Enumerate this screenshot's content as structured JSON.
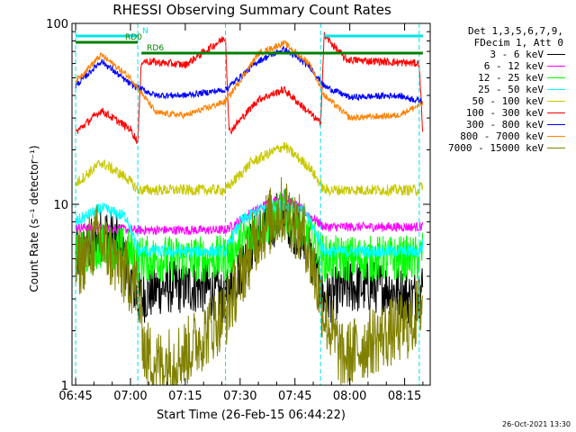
{
  "header": {
    "title": "RHESSI Observing Summary Count Rates",
    "xlabel": "Start Time (26-Feb-15 06:44:22)",
    "ylabel": "Count Rate (s⁻¹ detector⁻¹)",
    "timestamp": "26-Oct-2021 13:30"
  },
  "legend": {
    "header1": "Det 1,3,5,6,7,9,",
    "header2": "FDecim 1, Att 0"
  },
  "flags": [
    {
      "label": "N",
      "color": "#00e5e5",
      "segments": [
        [
          0,
          17
        ],
        [
          68,
          95
        ]
      ]
    },
    {
      "label": "RD0",
      "color": "#008000",
      "segments": [
        [
          0,
          17
        ]
      ]
    },
    {
      "label": "RD6",
      "color": "#008000",
      "segments": [
        [
          18,
          95
        ]
      ]
    }
  ],
  "chart_data": {
    "type": "line",
    "xlabel": "Start Time (26-Feb-15 06:44:22)",
    "ylabel": "Count Rate (s⁻¹ detector⁻¹)",
    "x_ticks": [
      "06:45",
      "07:00",
      "07:15",
      "07:30",
      "07:45",
      "08:00",
      "08:15"
    ],
    "x_tick_minutes": [
      0,
      15,
      30,
      45,
      60,
      75,
      90
    ],
    "xlim": [
      -1,
      97
    ],
    "yscale": "log",
    "ylim": [
      1,
      100
    ],
    "y_ticks": [
      1,
      10,
      100
    ],
    "grid": false,
    "legend_position": "right",
    "gap_lines_minutes": [
      0,
      17,
      41,
      67,
      94
    ],
    "series": [
      {
        "name": "3 - 6 keV",
        "color": "#000000",
        "points": [
          [
            0,
            5
          ],
          [
            8,
            7
          ],
          [
            12,
            6
          ],
          [
            17,
            3
          ],
          [
            24,
            3.5
          ],
          [
            35,
            3.5
          ],
          [
            41,
            3
          ],
          [
            50,
            7
          ],
          [
            57,
            9
          ],
          [
            63,
            6
          ],
          [
            68,
            3
          ],
          [
            75,
            3.5
          ],
          [
            85,
            3.5
          ],
          [
            92,
            3
          ],
          [
            95,
            3.5
          ]
        ]
      },
      {
        "name": "6 - 12 keV",
        "color": "#ff00ff",
        "points": [
          [
            0,
            7.5
          ],
          [
            17,
            7.2
          ],
          [
            41,
            7.2
          ],
          [
            50,
            9.5
          ],
          [
            57,
            11
          ],
          [
            63,
            9
          ],
          [
            68,
            7.5
          ],
          [
            94,
            7.5
          ],
          [
            95,
            7.6
          ]
        ]
      },
      {
        "name": "12 - 25 keV",
        "color": "#00ff00",
        "points": [
          [
            0,
            5
          ],
          [
            8,
            6
          ],
          [
            14,
            5.5
          ],
          [
            17,
            5
          ],
          [
            41,
            5
          ],
          [
            50,
            7.5
          ],
          [
            57,
            9
          ],
          [
            63,
            7
          ],
          [
            68,
            5
          ],
          [
            94,
            5
          ],
          [
            95,
            5.5
          ]
        ]
      },
      {
        "name": "25 - 50 keV",
        "color": "#00ffff",
        "points": [
          [
            0,
            8
          ],
          [
            7,
            9.5
          ],
          [
            14,
            8.5
          ],
          [
            17,
            5.5
          ],
          [
            41,
            5.5
          ],
          [
            45,
            8
          ],
          [
            51,
            9.5
          ],
          [
            57,
            10
          ],
          [
            63,
            9
          ],
          [
            68,
            5.5
          ],
          [
            94,
            5.5
          ],
          [
            95,
            6
          ]
        ]
      },
      {
        "name": "50 - 100 keV",
        "color": "#c8c800",
        "points": [
          [
            0,
            13
          ],
          [
            7,
            17
          ],
          [
            14,
            14
          ],
          [
            17,
            12
          ],
          [
            41,
            12
          ],
          [
            48,
            17
          ],
          [
            57,
            21
          ],
          [
            64,
            16
          ],
          [
            68,
            12
          ],
          [
            94,
            12
          ],
          [
            95,
            13
          ]
        ]
      },
      {
        "name": "100 - 300 keV",
        "color": "#ff0000",
        "points": [
          [
            0,
            25
          ],
          [
            7,
            33
          ],
          [
            15,
            26
          ],
          [
            17,
            22
          ],
          [
            18,
            62
          ],
          [
            30,
            59
          ],
          [
            41,
            84
          ],
          [
            42,
            25
          ],
          [
            50,
            38
          ],
          [
            57,
            43
          ],
          [
            64,
            32
          ],
          [
            67,
            28
          ],
          [
            68,
            86
          ],
          [
            74,
            63
          ],
          [
            94,
            60
          ],
          [
            95,
            24
          ]
        ]
      },
      {
        "name": "300 - 800 keV",
        "color": "#0000ff",
        "points": [
          [
            0,
            45
          ],
          [
            7,
            62
          ],
          [
            15,
            46
          ],
          [
            22,
            40
          ],
          [
            30,
            40
          ],
          [
            41,
            43
          ],
          [
            50,
            62
          ],
          [
            57,
            72
          ],
          [
            64,
            58
          ],
          [
            68,
            45
          ],
          [
            75,
            39
          ],
          [
            88,
            40
          ],
          [
            95,
            37
          ]
        ]
      },
      {
        "name": "800 - 7000 keV",
        "color": "#ff8000",
        "points": [
          [
            0,
            48
          ],
          [
            7,
            67
          ],
          [
            15,
            50
          ],
          [
            22,
            32
          ],
          [
            30,
            31
          ],
          [
            41,
            37
          ],
          [
            50,
            68
          ],
          [
            57,
            78
          ],
          [
            64,
            60
          ],
          [
            68,
            40
          ],
          [
            75,
            30
          ],
          [
            88,
            31
          ],
          [
            95,
            36
          ]
        ]
      },
      {
        "name": "7000 - 15000 keV",
        "color": "#808000",
        "points": [
          [
            0,
            4.5
          ],
          [
            6,
            6.5
          ],
          [
            12,
            4.5
          ],
          [
            17,
            3.5
          ],
          [
            19,
            1.5
          ],
          [
            23,
            1.3
          ],
          [
            30,
            1.5
          ],
          [
            41,
            2.5
          ],
          [
            50,
            7
          ],
          [
            57,
            9.5
          ],
          [
            63,
            6.5
          ],
          [
            68,
            2.5
          ],
          [
            73,
            1.4
          ],
          [
            82,
            1.8
          ],
          [
            92,
            2.2
          ],
          [
            95,
            3
          ]
        ]
      }
    ]
  }
}
